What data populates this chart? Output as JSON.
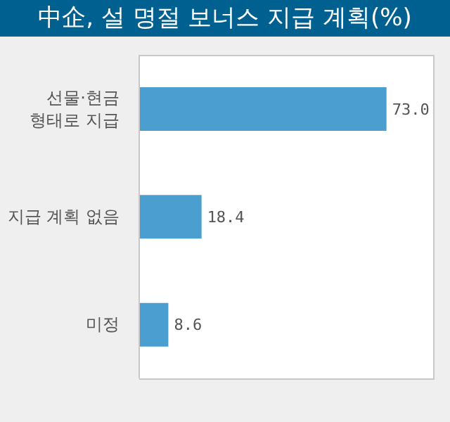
{
  "chart_data": {
    "type": "bar",
    "orientation": "horizontal",
    "title": "中企, 설 명절 보너스 지급 계획(%)",
    "categories": [
      "선물·현금\n형태로 지급",
      "지급 계획 없음",
      "미정"
    ],
    "values": [
      73.0,
      18.4,
      8.6
    ],
    "value_labels": [
      "73.0",
      "18.4",
      "8.6"
    ],
    "colors": [
      "#4a9fd0",
      "#4a9fd0",
      "#4a9fd0"
    ],
    "grid": false
  }
}
